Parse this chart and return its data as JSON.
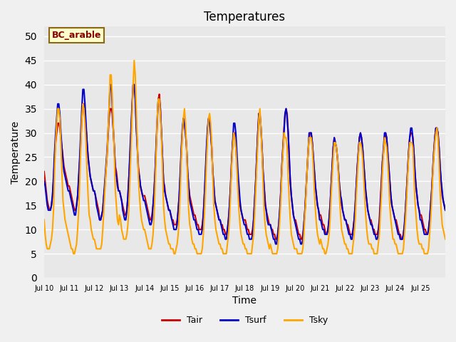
{
  "title": "Temperatures",
  "xlabel": "Time",
  "ylabel": "Temperature",
  "ylim": [
    0,
    52
  ],
  "yticks": [
    0,
    5,
    10,
    15,
    20,
    25,
    30,
    35,
    40,
    45,
    50
  ],
  "bg_color": "#e8e8e8",
  "tair_color": "#cc0000",
  "tsurf_color": "#0000cc",
  "tsky_color": "#ffa500",
  "legend_labels": [
    "Tair",
    "Tsurf",
    "Tsky"
  ],
  "annotation_text": "BC_arable",
  "annotation_color": "#8b0000",
  "annotation_bg": "#ffffcc",
  "x_tick_labels": [
    "Jul 10",
    "Jul 11",
    "Jul 12",
    "Jul 13",
    "Jul 14",
    "Jul 15",
    "Jul 16",
    "Jul 17",
    "Jul 18",
    "Jul 19",
    "Jul 20",
    "Jul 21",
    "Jul 22",
    "Jul 23",
    "Jul 24",
    "Jul 25",
    ""
  ],
  "n_days": 16,
  "pts_per_day": 24,
  "tair": [
    22,
    20,
    18,
    16,
    15,
    14,
    14,
    15,
    17,
    20,
    25,
    28,
    30,
    32,
    32,
    31,
    29,
    27,
    25,
    23,
    22,
    21,
    20,
    19,
    19,
    18,
    17,
    16,
    15,
    14,
    14,
    15,
    17,
    20,
    24,
    28,
    33,
    36,
    36,
    34,
    31,
    28,
    25,
    23,
    21,
    20,
    19,
    18,
    18,
    17,
    16,
    15,
    14,
    12,
    12,
    13,
    14,
    17,
    19,
    22,
    25,
    29,
    33,
    35,
    35,
    34,
    31,
    27,
    23,
    22,
    20,
    18,
    18,
    17,
    16,
    15,
    14,
    13,
    13,
    14,
    17,
    21,
    25,
    30,
    35,
    40,
    40,
    38,
    32,
    27,
    23,
    21,
    19,
    18,
    17,
    17,
    17,
    16,
    15,
    14,
    13,
    12,
    12,
    13,
    15,
    18,
    22,
    27,
    32,
    37,
    38,
    35,
    30,
    25,
    20,
    19,
    17,
    16,
    15,
    14,
    14,
    13,
    12,
    12,
    11,
    11,
    11,
    12,
    14,
    17,
    21,
    26,
    30,
    33,
    32,
    30,
    27,
    22,
    19,
    17,
    16,
    15,
    14,
    13,
    13,
    12,
    11,
    11,
    10,
    10,
    10,
    11,
    13,
    17,
    21,
    26,
    30,
    33,
    33,
    30,
    27,
    22,
    19,
    16,
    15,
    14,
    13,
    12,
    12,
    11,
    11,
    10,
    10,
    9,
    9,
    10,
    12,
    15,
    19,
    24,
    28,
    30,
    30,
    27,
    24,
    20,
    17,
    15,
    14,
    13,
    12,
    12,
    12,
    11,
    10,
    10,
    9,
    9,
    9,
    10,
    12,
    16,
    20,
    25,
    30,
    34,
    34,
    31,
    27,
    22,
    19,
    16,
    14,
    13,
    12,
    11,
    11,
    10,
    10,
    9,
    9,
    8,
    8,
    9,
    11,
    14,
    18,
    23,
    27,
    31,
    34,
    35,
    34,
    30,
    25,
    20,
    17,
    15,
    13,
    12,
    12,
    11,
    10,
    9,
    9,
    8,
    8,
    9,
    11,
    14,
    18,
    22,
    26,
    29,
    30,
    30,
    28,
    25,
    22,
    19,
    17,
    15,
    14,
    13,
    13,
    12,
    11,
    11,
    10,
    9,
    9,
    10,
    12,
    15,
    19,
    23,
    27,
    29,
    28,
    27,
    25,
    22,
    19,
    17,
    15,
    14,
    13,
    12,
    12,
    11,
    11,
    10,
    9,
    9,
    9,
    10,
    12,
    15,
    19,
    23,
    26,
    29,
    30,
    29,
    27,
    24,
    21,
    18,
    16,
    14,
    13,
    12,
    12,
    11,
    10,
    10,
    9,
    9,
    9,
    10,
    12,
    16,
    20,
    24,
    26,
    29,
    30,
    29,
    26,
    23,
    20,
    17,
    15,
    14,
    13,
    12,
    12,
    11,
    10,
    9,
    9,
    8,
    8,
    9,
    11,
    14,
    18,
    22,
    26,
    29,
    30,
    30,
    29,
    26,
    22,
    19,
    17,
    15,
    14,
    13,
    13,
    12,
    11,
    10,
    10,
    9,
    9,
    10,
    12,
    15,
    18,
    22,
    26,
    29,
    31,
    31,
    30,
    27,
    23,
    20,
    17,
    16,
    15,
    14
  ],
  "tsurf": [
    20,
    19,
    17,
    15,
    14,
    14,
    14,
    15,
    17,
    21,
    26,
    30,
    33,
    36,
    36,
    34,
    30,
    27,
    24,
    22,
    21,
    20,
    19,
    18,
    18,
    17,
    16,
    15,
    14,
    13,
    13,
    15,
    17,
    21,
    25,
    30,
    35,
    39,
    39,
    36,
    32,
    28,
    25,
    23,
    21,
    20,
    19,
    18,
    18,
    17,
    15,
    14,
    13,
    12,
    12,
    13,
    14,
    17,
    20,
    23,
    26,
    30,
    35,
    40,
    40,
    36,
    31,
    27,
    22,
    21,
    19,
    18,
    18,
    17,
    16,
    14,
    13,
    12,
    12,
    14,
    17,
    21,
    26,
    31,
    36,
    40,
    40,
    37,
    31,
    27,
    22,
    21,
    19,
    18,
    17,
    16,
    16,
    15,
    14,
    13,
    12,
    11,
    11,
    12,
    15,
    18,
    22,
    28,
    33,
    37,
    37,
    35,
    30,
    25,
    20,
    18,
    17,
    16,
    15,
    14,
    14,
    13,
    12,
    11,
    10,
    10,
    10,
    11,
    14,
    17,
    22,
    27,
    31,
    33,
    32,
    30,
    27,
    22,
    19,
    16,
    15,
    14,
    13,
    12,
    12,
    11,
    10,
    10,
    9,
    9,
    9,
    10,
    13,
    17,
    22,
    27,
    31,
    33,
    32,
    30,
    27,
    22,
    19,
    16,
    15,
    14,
    13,
    12,
    12,
    11,
    10,
    9,
    9,
    8,
    8,
    10,
    12,
    15,
    19,
    24,
    28,
    32,
    32,
    30,
    26,
    22,
    19,
    16,
    14,
    13,
    12,
    11,
    11,
    10,
    9,
    9,
    8,
    8,
    8,
    9,
    12,
    16,
    20,
    25,
    30,
    34,
    34,
    31,
    27,
    22,
    19,
    15,
    14,
    12,
    11,
    11,
    11,
    10,
    9,
    8,
    8,
    7,
    7,
    9,
    11,
    14,
    18,
    23,
    27,
    30,
    34,
    35,
    33,
    30,
    25,
    20,
    17,
    15,
    13,
    12,
    11,
    10,
    9,
    8,
    8,
    7,
    7,
    8,
    11,
    14,
    18,
    22,
    26,
    30,
    30,
    30,
    28,
    25,
    22,
    19,
    17,
    15,
    14,
    12,
    12,
    11,
    10,
    10,
    9,
    9,
    9,
    10,
    12,
    15,
    19,
    23,
    27,
    29,
    28,
    27,
    25,
    22,
    19,
    17,
    16,
    14,
    13,
    12,
    12,
    11,
    10,
    9,
    9,
    8,
    8,
    10,
    12,
    15,
    19,
    23,
    26,
    29,
    30,
    29,
    27,
    24,
    21,
    18,
    16,
    14,
    13,
    12,
    11,
    11,
    10,
    9,
    9,
    8,
    8,
    9,
    11,
    15,
    19,
    24,
    27,
    30,
    30,
    29,
    26,
    23,
    20,
    17,
    15,
    14,
    13,
    12,
    11,
    10,
    9,
    9,
    8,
    8,
    8,
    9,
    11,
    14,
    18,
    22,
    26,
    29,
    31,
    31,
    29,
    26,
    22,
    19,
    17,
    15,
    14,
    12,
    12,
    11,
    10,
    9,
    9,
    9,
    9,
    10,
    12,
    15,
    18,
    22,
    26,
    29,
    31,
    31,
    30,
    27,
    23,
    20,
    18,
    16,
    15,
    14
  ],
  "tsky": [
    12,
    9,
    7,
    6,
    6,
    6,
    7,
    8,
    10,
    14,
    22,
    28,
    32,
    35,
    35,
    33,
    28,
    22,
    16,
    14,
    12,
    11,
    10,
    9,
    8,
    7,
    6,
    6,
    5,
    5,
    6,
    7,
    10,
    14,
    20,
    27,
    33,
    36,
    35,
    32,
    28,
    22,
    17,
    13,
    12,
    10,
    9,
    8,
    8,
    7,
    6,
    6,
    6,
    6,
    6,
    7,
    10,
    14,
    18,
    22,
    25,
    30,
    35,
    42,
    42,
    38,
    32,
    26,
    18,
    15,
    12,
    11,
    13,
    12,
    10,
    9,
    8,
    8,
    8,
    9,
    11,
    15,
    21,
    27,
    34,
    40,
    45,
    42,
    35,
    28,
    21,
    17,
    14,
    12,
    11,
    10,
    10,
    9,
    8,
    7,
    6,
    6,
    6,
    7,
    9,
    13,
    19,
    26,
    33,
    37,
    37,
    34,
    29,
    23,
    15,
    12,
    10,
    9,
    8,
    7,
    7,
    6,
    6,
    6,
    5,
    5,
    6,
    7,
    9,
    13,
    18,
    25,
    30,
    33,
    35,
    32,
    27,
    20,
    14,
    11,
    10,
    8,
    7,
    7,
    6,
    6,
    5,
    5,
    5,
    5,
    5,
    6,
    9,
    13,
    18,
    24,
    29,
    33,
    34,
    32,
    28,
    21,
    15,
    12,
    10,
    9,
    8,
    7,
    7,
    6,
    6,
    5,
    5,
    5,
    5,
    7,
    9,
    12,
    17,
    23,
    27,
    30,
    29,
    27,
    23,
    18,
    14,
    11,
    9,
    8,
    7,
    7,
    6,
    6,
    5,
    5,
    5,
    5,
    5,
    7,
    9,
    13,
    18,
    23,
    28,
    33,
    35,
    31,
    26,
    20,
    14,
    11,
    9,
    8,
    7,
    6,
    7,
    6,
    5,
    5,
    5,
    5,
    5,
    6,
    9,
    12,
    16,
    22,
    26,
    30,
    29,
    29,
    27,
    21,
    16,
    12,
    9,
    8,
    7,
    6,
    6,
    6,
    5,
    5,
    5,
    5,
    5,
    6,
    9,
    13,
    17,
    22,
    26,
    29,
    29,
    29,
    27,
    23,
    18,
    14,
    11,
    9,
    8,
    7,
    8,
    7,
    6,
    6,
    5,
    5,
    6,
    7,
    9,
    12,
    17,
    21,
    25,
    28,
    28,
    27,
    25,
    21,
    17,
    13,
    10,
    9,
    8,
    7,
    7,
    6,
    6,
    5,
    5,
    5,
    5,
    7,
    9,
    12,
    17,
    21,
    25,
    28,
    28,
    27,
    25,
    21,
    17,
    13,
    10,
    8,
    7,
    7,
    7,
    6,
    6,
    5,
    5,
    5,
    5,
    7,
    9,
    13,
    17,
    22,
    26,
    29,
    28,
    27,
    24,
    20,
    15,
    12,
    10,
    8,
    8,
    7,
    7,
    6,
    5,
    5,
    5,
    5,
    5,
    6,
    9,
    12,
    16,
    21,
    25,
    28,
    28,
    28,
    27,
    22,
    16,
    13,
    10,
    8,
    7,
    7,
    7,
    6,
    6,
    5,
    5,
    5,
    5,
    6,
    9,
    12,
    16,
    21,
    25,
    28,
    30,
    31,
    29,
    24,
    18,
    14,
    11,
    10,
    9,
    8
  ]
}
